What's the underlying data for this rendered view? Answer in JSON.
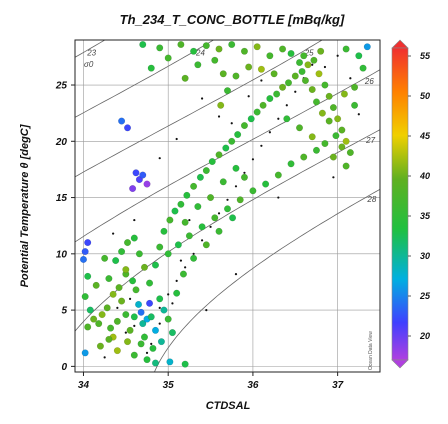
{
  "chart_data": {
    "type": "scatter",
    "title": "Th_234_T_CONC_BOTTLE [mBq/kg]",
    "xlabel": "CTDSAL",
    "ylabel": "Potential Temperature θ [degC]",
    "xlim": [
      33.9,
      37.5
    ],
    "ylim": [
      -0.5,
      29
    ],
    "x_ticks": [
      "34",
      "35",
      "36",
      "37"
    ],
    "y_ticks": [
      "0",
      "5",
      "10",
      "15",
      "20",
      "25"
    ],
    "grid": true,
    "isopycnal_label": "σ0",
    "isopycnals": [
      {
        "label": "23",
        "sigma": 23
      },
      {
        "label": "24",
        "sigma": 24
      },
      {
        "label": "25",
        "sigma": 25
      },
      {
        "label": "26",
        "sigma": 26
      },
      {
        "label": "27",
        "sigma": 27
      },
      {
        "label": "28",
        "sigma": 28
      }
    ],
    "colorbar": {
      "min": 17,
      "max": 56,
      "ticks": [
        "20",
        "25",
        "30",
        "35",
        "40",
        "45",
        "50",
        "55"
      ],
      "watermark": "Ocean Data View"
    },
    "points": [
      [
        34.02,
        1.2,
        26
      ],
      [
        34.05,
        3.5,
        38
      ],
      [
        34.08,
        5.0,
        32
      ],
      [
        34.02,
        6.2,
        35
      ],
      [
        34.0,
        9.5,
        24
      ],
      [
        34.02,
        10.2,
        23
      ],
      [
        34.05,
        8.0,
        33
      ],
      [
        34.12,
        4.2,
        40
      ],
      [
        34.18,
        3.8,
        38
      ],
      [
        34.22,
        4.6,
        41
      ],
      [
        34.28,
        5.2,
        39
      ],
      [
        34.32,
        3.4,
        37
      ],
      [
        34.35,
        2.6,
        42
      ],
      [
        34.4,
        4.0,
        38
      ],
      [
        34.45,
        5.8,
        40
      ],
      [
        34.5,
        4.6,
        36
      ],
      [
        34.55,
        3.2,
        39
      ],
      [
        34.6,
        4.4,
        33
      ],
      [
        34.65,
        5.5,
        28
      ],
      [
        34.68,
        4.8,
        24
      ],
      [
        34.7,
        3.8,
        30
      ],
      [
        34.72,
        2.6,
        35
      ],
      [
        34.75,
        4.2,
        27
      ],
      [
        34.78,
        5.6,
        22
      ],
      [
        34.8,
        4.4,
        32
      ],
      [
        34.62,
        6.8,
        37
      ],
      [
        34.58,
        7.6,
        34
      ],
      [
        34.5,
        8.2,
        38
      ],
      [
        34.42,
        7.0,
        39
      ],
      [
        34.35,
        6.4,
        41
      ],
      [
        34.3,
        7.8,
        36
      ],
      [
        34.38,
        9.4,
        33
      ],
      [
        34.45,
        10.2,
        35
      ],
      [
        34.52,
        11.0,
        37
      ],
      [
        34.6,
        11.4,
        34
      ],
      [
        34.66,
        10.0,
        36
      ],
      [
        34.72,
        8.8,
        40
      ],
      [
        34.78,
        7.4,
        35
      ],
      [
        34.85,
        9.0,
        33
      ],
      [
        34.9,
        10.6,
        36
      ],
      [
        34.95,
        12.0,
        34
      ],
      [
        35.02,
        13.0,
        37
      ],
      [
        35.08,
        13.8,
        33
      ],
      [
        35.15,
        14.4,
        35
      ],
      [
        35.22,
        15.2,
        34
      ],
      [
        35.3,
        16.0,
        37
      ],
      [
        35.38,
        16.8,
        33
      ],
      [
        35.45,
        17.4,
        36
      ],
      [
        35.52,
        18.2,
        34
      ],
      [
        35.6,
        18.8,
        38
      ],
      [
        35.68,
        19.4,
        33
      ],
      [
        35.75,
        20.0,
        36
      ],
      [
        35.82,
        20.6,
        34
      ],
      [
        35.9,
        21.4,
        37
      ],
      [
        35.98,
        22.0,
        33
      ],
      [
        36.05,
        22.6,
        36
      ],
      [
        36.12,
        23.2,
        38
      ],
      [
        36.2,
        23.8,
        34
      ],
      [
        36.28,
        24.2,
        36
      ],
      [
        36.35,
        24.8,
        40
      ],
      [
        36.42,
        25.2,
        37
      ],
      [
        36.5,
        25.8,
        39
      ],
      [
        36.58,
        26.2,
        36
      ],
      [
        36.65,
        26.8,
        41
      ],
      [
        36.72,
        27.2,
        38
      ],
      [
        36.78,
        26.0,
        42
      ],
      [
        36.85,
        25.0,
        37
      ],
      [
        36.9,
        24.0,
        40
      ],
      [
        36.95,
        23.0,
        38
      ],
      [
        37.0,
        22.0,
        41
      ],
      [
        37.05,
        21.0,
        39
      ],
      [
        37.1,
        20.0,
        42
      ],
      [
        37.15,
        19.0,
        38
      ],
      [
        37.05,
        19.5,
        40
      ],
      [
        36.98,
        20.5,
        36
      ],
      [
        36.9,
        21.8,
        39
      ],
      [
        36.82,
        22.5,
        41
      ],
      [
        36.75,
        23.5,
        37
      ],
      [
        36.7,
        24.6,
        40
      ],
      [
        36.62,
        25.4,
        38
      ],
      [
        36.55,
        27.0,
        36
      ],
      [
        36.45,
        27.8,
        34
      ],
      [
        36.35,
        28.2,
        38
      ],
      [
        36.2,
        27.6,
        37
      ],
      [
        36.05,
        28.4,
        41
      ],
      [
        35.9,
        28.0,
        38
      ],
      [
        35.75,
        28.6,
        36
      ],
      [
        35.6,
        28.2,
        40
      ],
      [
        35.45,
        28.5,
        37
      ],
      [
        35.3,
        28.0,
        34
      ],
      [
        35.15,
        28.6,
        38
      ],
      [
        34.9,
        28.3,
        36
      ],
      [
        34.7,
        28.6,
        33
      ],
      [
        35.55,
        27.2,
        37
      ],
      [
        35.65,
        26.0,
        39
      ],
      [
        35.7,
        24.5,
        36
      ],
      [
        35.62,
        23.2,
        41
      ],
      [
        35.8,
        25.8,
        38
      ],
      [
        35.95,
        26.6,
        40
      ],
      [
        36.1,
        26.4,
        42
      ],
      [
        36.25,
        26.0,
        39
      ],
      [
        36.6,
        27.6,
        37
      ],
      [
        36.8,
        28.0,
        40
      ],
      [
        37.1,
        28.2,
        36
      ],
      [
        37.25,
        27.6,
        33
      ],
      [
        37.3,
        26.5,
        35
      ],
      [
        37.2,
        24.8,
        38
      ],
      [
        37.08,
        24.2,
        41
      ],
      [
        36.75,
        19.2,
        36
      ],
      [
        36.6,
        18.6,
        38
      ],
      [
        36.45,
        18.0,
        35
      ],
      [
        36.3,
        17.0,
        37
      ],
      [
        36.15,
        16.2,
        34
      ],
      [
        36.0,
        15.6,
        36
      ],
      [
        35.85,
        14.8,
        38
      ],
      [
        35.7,
        14.0,
        35
      ],
      [
        35.55,
        13.2,
        37
      ],
      [
        35.4,
        12.4,
        34
      ],
      [
        35.25,
        11.6,
        36
      ],
      [
        35.12,
        10.8,
        33
      ],
      [
        35.0,
        10.0,
        35
      ],
      [
        34.9,
        6.0,
        33
      ],
      [
        34.95,
        5.0,
        30
      ],
      [
        35.0,
        4.2,
        36
      ],
      [
        35.05,
        3.0,
        32
      ],
      [
        34.85,
        3.2,
        27
      ],
      [
        34.92,
        2.2,
        30
      ],
      [
        35.1,
        6.5,
        34
      ],
      [
        35.18,
        8.2,
        36
      ],
      [
        35.3,
        9.6,
        35
      ],
      [
        35.45,
        10.8,
        38
      ],
      [
        35.6,
        12.0,
        36
      ],
      [
        35.76,
        13.2,
        33
      ],
      [
        35.9,
        16.8,
        37
      ],
      [
        35.8,
        17.6,
        34
      ],
      [
        35.65,
        16.4,
        36
      ],
      [
        35.5,
        15.0,
        38
      ],
      [
        35.35,
        14.2,
        35
      ],
      [
        35.2,
        12.8,
        37
      ],
      [
        34.62,
        17.2,
        22
      ],
      [
        34.66,
        16.6,
        21
      ],
      [
        34.7,
        17.0,
        23
      ],
      [
        34.58,
        15.8,
        19
      ],
      [
        34.75,
        16.2,
        18
      ],
      [
        34.45,
        21.8,
        24
      ],
      [
        34.52,
        21.2,
        22
      ],
      [
        34.5,
        8.6,
        41
      ],
      [
        34.25,
        9.6,
        37
      ],
      [
        34.15,
        7.2,
        39
      ],
      [
        34.2,
        1.8,
        40
      ],
      [
        34.4,
        1.4,
        42
      ],
      [
        34.6,
        1.0,
        36
      ],
      [
        34.75,
        0.6,
        34
      ],
      [
        34.85,
        0.3,
        31
      ],
      [
        35.02,
        0.4,
        28
      ],
      [
        35.2,
        0.2,
        33
      ],
      [
        34.3,
        2.4,
        39
      ],
      [
        34.52,
        2.2,
        41
      ],
      [
        34.68,
        2.0,
        36
      ],
      [
        34.82,
        1.6,
        34
      ],
      [
        37.35,
        28.4,
        26
      ],
      [
        36.4,
        22.0,
        35
      ],
      [
        36.55,
        21.2,
        38
      ],
      [
        36.7,
        20.4,
        41
      ],
      [
        36.85,
        19.8,
        37
      ],
      [
        36.95,
        18.6,
        40
      ],
      [
        37.1,
        17.8,
        38
      ],
      [
        37.2,
        23.2,
        36
      ],
      [
        34.05,
        11.0,
        22
      ],
      [
        34.8,
        26.5,
        34
      ],
      [
        35.0,
        27.4,
        37
      ],
      [
        35.35,
        26.8,
        36
      ],
      [
        35.2,
        25.6,
        39
      ]
    ],
    "profile_points": [
      [
        34.5,
        3.0
      ],
      [
        34.6,
        3.6
      ],
      [
        34.7,
        4.0
      ],
      [
        34.8,
        4.6
      ],
      [
        34.9,
        5.2
      ],
      [
        35.0,
        6.4
      ],
      [
        35.1,
        7.6
      ],
      [
        35.2,
        8.8
      ],
      [
        35.3,
        10.0
      ],
      [
        35.4,
        11.2
      ],
      [
        35.5,
        12.4
      ],
      [
        35.6,
        13.6
      ],
      [
        35.7,
        14.8
      ],
      [
        35.8,
        16.0
      ],
      [
        35.9,
        17.2
      ],
      [
        36.0,
        18.4
      ],
      [
        36.1,
        19.6
      ],
      [
        36.2,
        20.8
      ],
      [
        36.3,
        22.0
      ],
      [
        36.4,
        23.2
      ],
      [
        36.5,
        24.4
      ],
      [
        36.6,
        25.6
      ],
      [
        36.7,
        26.8
      ],
      [
        34.75,
        1.2
      ],
      [
        34.8,
        2.0
      ],
      [
        34.72,
        2.8
      ],
      [
        34.9,
        3.8
      ],
      [
        35.05,
        5.6
      ],
      [
        35.15,
        9.4
      ],
      [
        35.25,
        13.0
      ],
      [
        35.6,
        22.2
      ],
      [
        35.75,
        21.6
      ],
      [
        35.95,
        24.0
      ],
      [
        36.1,
        25.4
      ],
      [
        36.85,
        26.6
      ],
      [
        37.0,
        27.6
      ],
      [
        37.15,
        25.6
      ],
      [
        37.25,
        22.4
      ],
      [
        34.35,
        11.8
      ],
      [
        34.6,
        13.0
      ],
      [
        34.9,
        18.5
      ],
      [
        35.1,
        20.2
      ],
      [
        35.4,
        23.8
      ],
      [
        36.95,
        16.8
      ],
      [
        36.3,
        15.0
      ],
      [
        34.4,
        5.2
      ],
      [
        34.55,
        6.0
      ],
      [
        34.25,
        0.8
      ],
      [
        35.45,
        5.0
      ],
      [
        35.8,
        8.2
      ]
    ]
  }
}
